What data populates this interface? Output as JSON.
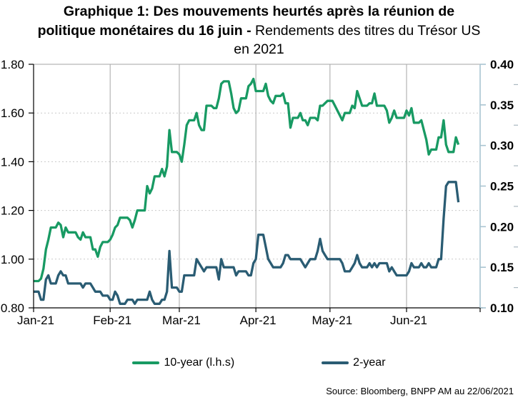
{
  "title": {
    "line1": "Graphique 1: Des mouvements heurtés après la réunion de",
    "line2_bold": "politique monétaires du 16 juin -",
    "line2_regular": "Rendements des titres du Trésor US",
    "line3": "en 2021"
  },
  "source": "Source: Bloomberg, BNPP AM au 22/06/2021",
  "chart_data": {
    "type": "line",
    "title": "Graphique 1: Des mouvements heurtés après la réunion de politique monétaires du 16 juin - Rendements des titres du Trésor US en 2021",
    "x_axis": {
      "labels": [
        "Jan-21",
        "Feb-21",
        "Mar-21",
        "Apr-21",
        "May-21",
        "Jun-21"
      ],
      "month_day_offsets": [
        0,
        31,
        59,
        90,
        120,
        151
      ],
      "domain_days": [
        0,
        181
      ]
    },
    "left_axis": {
      "ticks": [
        "0.80",
        "1.00",
        "1.20",
        "1.40",
        "1.60",
        "1.80"
      ],
      "range": [
        0.8,
        1.8
      ]
    },
    "right_axis": {
      "ticks": [
        "0.10",
        "0.15",
        "0.20",
        "0.25",
        "0.30",
        "0.35",
        "0.40"
      ],
      "range": [
        0.1,
        0.4
      ]
    },
    "grid": {
      "vertical": "solid",
      "horizontal": "dashed",
      "legend_position": "bottom"
    },
    "colors": {
      "green": "#189a63",
      "blue": "#2a5c73",
      "grid": "#a6a6a6",
      "dashed_grid": "#c9c9c9",
      "right_axis": "#a9c4d1",
      "axis": "#000000"
    },
    "series": [
      {
        "name": "10-year (l.h.s)",
        "axis": "left",
        "color": "#189a63",
        "points": [
          [
            0,
            0.91
          ],
          [
            3,
            0.92
          ],
          [
            4,
            0.96
          ],
          [
            5,
            1.04
          ],
          [
            6,
            1.08
          ],
          [
            7,
            1.13
          ],
          [
            10,
            1.15
          ],
          [
            11,
            1.14
          ],
          [
            12,
            1.09
          ],
          [
            13,
            1.13
          ],
          [
            14,
            1.11
          ],
          [
            18,
            1.09
          ],
          [
            19,
            1.08
          ],
          [
            20,
            1.11
          ],
          [
            21,
            1.09
          ],
          [
            24,
            1.04
          ],
          [
            25,
            1.04
          ],
          [
            26,
            1.01
          ],
          [
            27,
            1.05
          ],
          [
            28,
            1.07
          ],
          [
            31,
            1.08
          ],
          [
            32,
            1.1
          ],
          [
            33,
            1.13
          ],
          [
            34,
            1.14
          ],
          [
            35,
            1.17
          ],
          [
            38,
            1.17
          ],
          [
            39,
            1.16
          ],
          [
            40,
            1.13
          ],
          [
            41,
            1.16
          ],
          [
            42,
            1.2
          ],
          [
            46,
            1.3
          ],
          [
            47,
            1.27
          ],
          [
            48,
            1.29
          ],
          [
            49,
            1.34
          ],
          [
            52,
            1.37
          ],
          [
            53,
            1.34
          ],
          [
            54,
            1.38
          ],
          [
            55,
            1.53
          ],
          [
            56,
            1.44
          ],
          [
            59,
            1.43
          ],
          [
            60,
            1.4
          ],
          [
            61,
            1.47
          ],
          [
            62,
            1.55
          ],
          [
            63,
            1.57
          ],
          [
            66,
            1.6
          ],
          [
            67,
            1.55
          ],
          [
            68,
            1.53
          ],
          [
            69,
            1.53
          ],
          [
            70,
            1.63
          ],
          [
            73,
            1.62
          ],
          [
            74,
            1.62
          ],
          [
            75,
            1.66
          ],
          [
            76,
            1.72
          ],
          [
            77,
            1.73
          ],
          [
            80,
            1.68
          ],
          [
            81,
            1.62
          ],
          [
            82,
            1.6
          ],
          [
            83,
            1.61
          ],
          [
            84,
            1.66
          ],
          [
            87,
            1.71
          ],
          [
            88,
            1.72
          ],
          [
            89,
            1.74
          ],
          [
            90,
            1.69
          ],
          [
            94,
            1.72
          ],
          [
            95,
            1.67
          ],
          [
            96,
            1.65
          ],
          [
            97,
            1.64
          ],
          [
            98,
            1.67
          ],
          [
            101,
            1.68
          ],
          [
            102,
            1.64
          ],
          [
            103,
            1.64
          ],
          [
            104,
            1.54
          ],
          [
            105,
            1.58
          ],
          [
            108,
            1.6
          ],
          [
            109,
            1.57
          ],
          [
            110,
            1.57
          ],
          [
            111,
            1.55
          ],
          [
            112,
            1.58
          ],
          [
            115,
            1.57
          ],
          [
            116,
            1.63
          ],
          [
            117,
            1.63
          ],
          [
            118,
            1.64
          ],
          [
            119,
            1.65
          ],
          [
            122,
            1.63
          ],
          [
            123,
            1.61
          ],
          [
            124,
            1.59
          ],
          [
            125,
            1.57
          ],
          [
            126,
            1.6
          ],
          [
            129,
            1.63
          ],
          [
            130,
            1.62
          ],
          [
            131,
            1.69
          ],
          [
            132,
            1.66
          ],
          [
            133,
            1.63
          ],
          [
            136,
            1.64
          ],
          [
            137,
            1.64
          ],
          [
            138,
            1.68
          ],
          [
            139,
            1.63
          ],
          [
            140,
            1.63
          ],
          [
            143,
            1.61
          ],
          [
            144,
            1.56
          ],
          [
            145,
            1.58
          ],
          [
            146,
            1.61
          ],
          [
            147,
            1.58
          ],
          [
            151,
            1.61
          ],
          [
            152,
            1.59
          ],
          [
            153,
            1.62
          ],
          [
            154,
            1.56
          ],
          [
            157,
            1.57
          ],
          [
            158,
            1.53
          ],
          [
            159,
            1.49
          ],
          [
            160,
            1.43
          ],
          [
            161,
            1.45
          ],
          [
            164,
            1.5
          ],
          [
            165,
            1.5
          ],
          [
            166,
            1.57
          ],
          [
            167,
            1.47
          ],
          [
            168,
            1.44
          ],
          [
            171,
            1.5
          ],
          [
            172,
            1.47
          ]
        ]
      },
      {
        "name": "2-year",
        "axis": "right",
        "color": "#2a5c73",
        "points": [
          [
            0,
            0.12
          ],
          [
            3,
            0.11
          ],
          [
            4,
            0.11
          ],
          [
            5,
            0.135
          ],
          [
            6,
            0.14
          ],
          [
            7,
            0.13
          ],
          [
            10,
            0.14
          ],
          [
            11,
            0.145
          ],
          [
            12,
            0.14
          ],
          [
            13,
            0.14
          ],
          [
            14,
            0.13
          ],
          [
            18,
            0.13
          ],
          [
            19,
            0.13
          ],
          [
            20,
            0.125
          ],
          [
            21,
            0.13
          ],
          [
            24,
            0.125
          ],
          [
            25,
            0.12
          ],
          [
            26,
            0.12
          ],
          [
            27,
            0.12
          ],
          [
            28,
            0.115
          ],
          [
            31,
            0.11
          ],
          [
            32,
            0.11
          ],
          [
            33,
            0.12
          ],
          [
            34,
            0.115
          ],
          [
            35,
            0.105
          ],
          [
            38,
            0.11
          ],
          [
            39,
            0.11
          ],
          [
            40,
            0.11
          ],
          [
            41,
            0.105
          ],
          [
            42,
            0.11
          ],
          [
            46,
            0.11
          ],
          [
            47,
            0.12
          ],
          [
            48,
            0.11
          ],
          [
            49,
            0.105
          ],
          [
            52,
            0.11
          ],
          [
            53,
            0.11
          ],
          [
            54,
            0.12
          ],
          [
            55,
            0.17
          ],
          [
            56,
            0.125
          ],
          [
            59,
            0.12
          ],
          [
            60,
            0.12
          ],
          [
            61,
            0.14
          ],
          [
            62,
            0.14
          ],
          [
            63,
            0.14
          ],
          [
            66,
            0.16
          ],
          [
            67,
            0.155
          ],
          [
            68,
            0.15
          ],
          [
            69,
            0.145
          ],
          [
            70,
            0.15
          ],
          [
            73,
            0.15
          ],
          [
            74,
            0.15
          ],
          [
            75,
            0.135
          ],
          [
            76,
            0.16
          ],
          [
            77,
            0.15
          ],
          [
            80,
            0.15
          ],
          [
            81,
            0.15
          ],
          [
            82,
            0.14
          ],
          [
            83,
            0.145
          ],
          [
            84,
            0.145
          ],
          [
            87,
            0.14
          ],
          [
            88,
            0.14
          ],
          [
            89,
            0.155
          ],
          [
            90,
            0.16
          ],
          [
            91,
            0.19
          ],
          [
            94,
            0.175
          ],
          [
            95,
            0.16
          ],
          [
            96,
            0.155
          ],
          [
            97,
            0.15
          ],
          [
            98,
            0.15
          ],
          [
            101,
            0.155
          ],
          [
            102,
            0.165
          ],
          [
            103,
            0.165
          ],
          [
            104,
            0.16
          ],
          [
            105,
            0.16
          ],
          [
            108,
            0.16
          ],
          [
            109,
            0.155
          ],
          [
            110,
            0.15
          ],
          [
            111,
            0.155
          ],
          [
            112,
            0.16
          ],
          [
            115,
            0.17
          ],
          [
            116,
            0.185
          ],
          [
            117,
            0.17
          ],
          [
            118,
            0.165
          ],
          [
            119,
            0.16
          ],
          [
            122,
            0.16
          ],
          [
            123,
            0.16
          ],
          [
            124,
            0.16
          ],
          [
            125,
            0.155
          ],
          [
            126,
            0.145
          ],
          [
            129,
            0.15
          ],
          [
            130,
            0.155
          ],
          [
            131,
            0.165
          ],
          [
            132,
            0.155
          ],
          [
            133,
            0.15
          ],
          [
            136,
            0.155
          ],
          [
            137,
            0.15
          ],
          [
            138,
            0.155
          ],
          [
            139,
            0.15
          ],
          [
            140,
            0.155
          ],
          [
            143,
            0.155
          ],
          [
            144,
            0.145
          ],
          [
            145,
            0.15
          ],
          [
            146,
            0.145
          ],
          [
            147,
            0.14
          ],
          [
            151,
            0.14
          ],
          [
            152,
            0.145
          ],
          [
            153,
            0.155
          ],
          [
            154,
            0.15
          ],
          [
            157,
            0.155
          ],
          [
            158,
            0.15
          ],
          [
            159,
            0.15
          ],
          [
            160,
            0.155
          ],
          [
            161,
            0.15
          ],
          [
            164,
            0.16
          ],
          [
            165,
            0.16
          ],
          [
            166,
            0.21
          ],
          [
            167,
            0.25
          ],
          [
            168,
            0.255
          ],
          [
            171,
            0.255
          ],
          [
            172,
            0.23
          ]
        ]
      }
    ]
  }
}
